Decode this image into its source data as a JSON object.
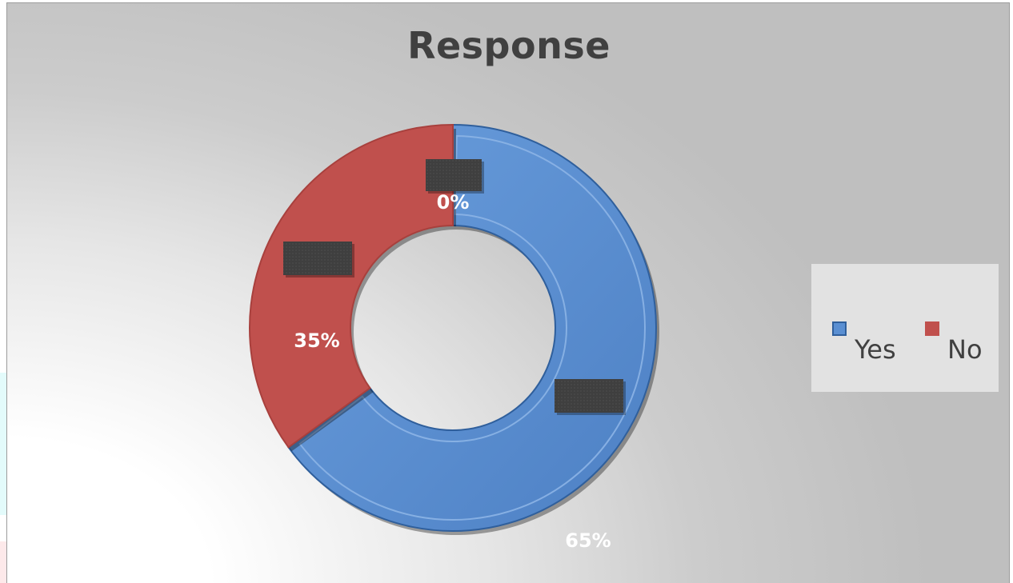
{
  "chart_data": {
    "type": "pie",
    "variant": "doughnut",
    "title": "Response",
    "categories": [
      "Yes",
      "No",
      ""
    ],
    "values": [
      65,
      35,
      0
    ],
    "data_labels": [
      "65%",
      "35%",
      "0%"
    ],
    "colors": [
      "#5a8fd2",
      "#c0504d"
    ],
    "legend": {
      "position": "right",
      "entries": [
        "Yes",
        "No"
      ]
    }
  }
}
